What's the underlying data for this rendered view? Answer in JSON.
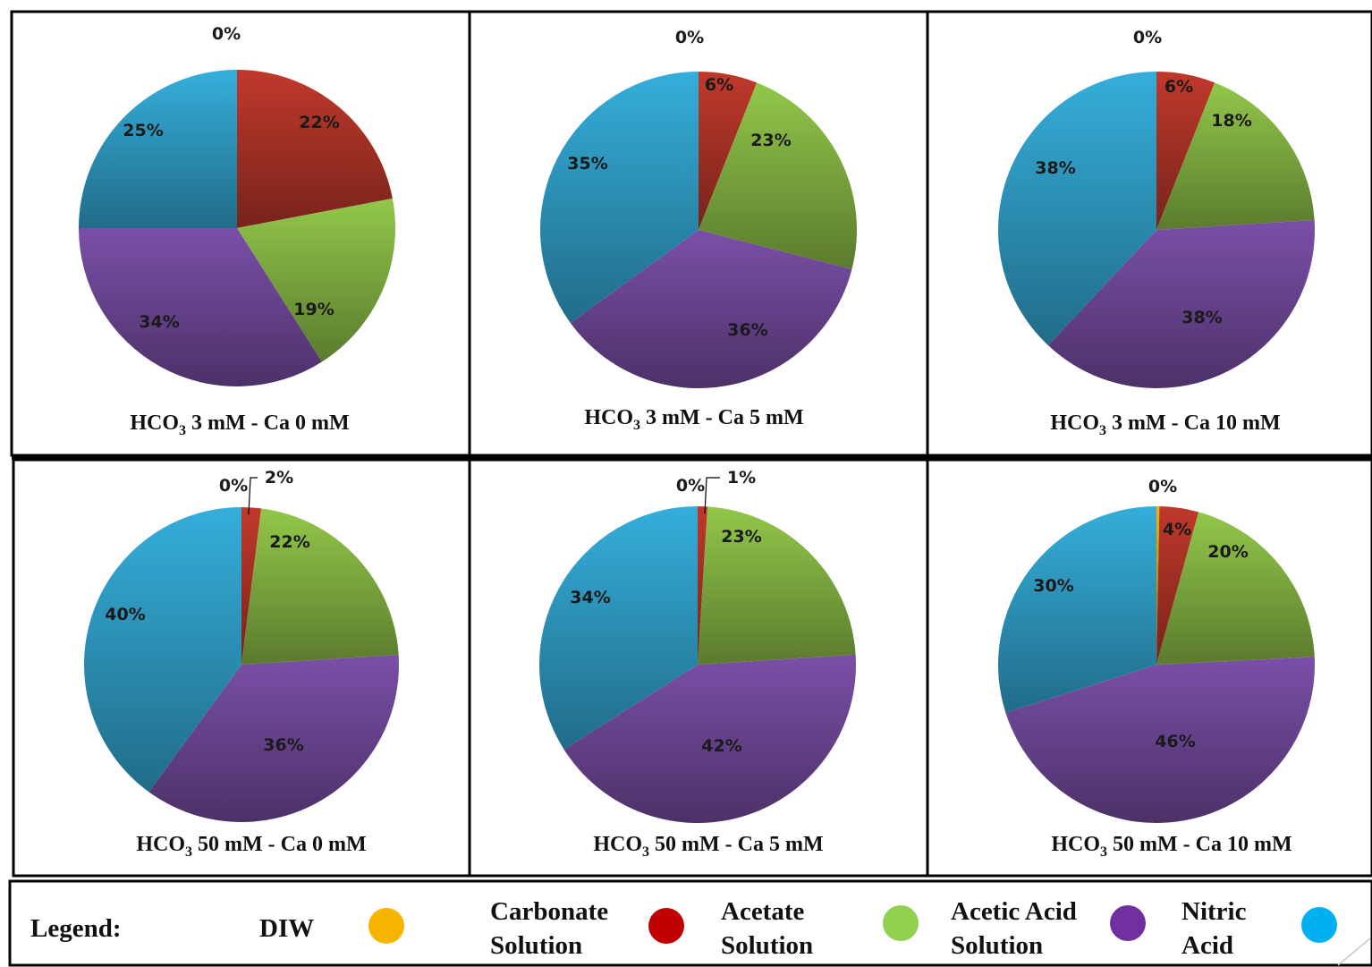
{
  "chart_data": [
    {
      "type": "pie",
      "title": {
        "pre": "HCO",
        "sub": "3",
        "post": " 3 mM - Ca 0 mM"
      },
      "slices": [
        {
          "label": "0%",
          "value": 0
        },
        {
          "label": "22%",
          "value": 22
        },
        {
          "label": "19%",
          "value": 19
        },
        {
          "label": "34%",
          "value": 34
        },
        {
          "label": "25%",
          "value": 25
        }
      ]
    },
    {
      "type": "pie",
      "title": {
        "pre": "HCO",
        "sub": "3",
        "post": " 3 mM - Ca 5 mM"
      },
      "slices": [
        {
          "label": "0%",
          "value": 0
        },
        {
          "label": "6%",
          "value": 6
        },
        {
          "label": "23%",
          "value": 23
        },
        {
          "label": "36%",
          "value": 36
        },
        {
          "label": "35%",
          "value": 35
        }
      ]
    },
    {
      "type": "pie",
      "title": {
        "pre": "HCO",
        "sub": "3",
        "post": " 3 mM - Ca 10 mM"
      },
      "slices": [
        {
          "label": "0%",
          "value": 0
        },
        {
          "label": "6%",
          "value": 6
        },
        {
          "label": "18%",
          "value": 18
        },
        {
          "label": "38%",
          "value": 38
        },
        {
          "label": "38%",
          "value": 38
        }
      ]
    },
    {
      "type": "pie",
      "title": {
        "pre": "HCO",
        "sub": "3",
        "post": " 50 mM - Ca 0 mM"
      },
      "slices": [
        {
          "label": "0%",
          "value": 0
        },
        {
          "label": "2%",
          "value": 2
        },
        {
          "label": "22%",
          "value": 22
        },
        {
          "label": "36%",
          "value": 36
        },
        {
          "label": "40%",
          "value": 40
        }
      ]
    },
    {
      "type": "pie",
      "title": {
        "pre": "HCO",
        "sub": "3",
        "post": " 50 mM - Ca 5 mM"
      },
      "slices": [
        {
          "label": "0%",
          "value": 0
        },
        {
          "label": "1%",
          "value": 1
        },
        {
          "label": "23%",
          "value": 23
        },
        {
          "label": "42%",
          "value": 42
        },
        {
          "label": "34%",
          "value": 34
        }
      ]
    },
    {
      "type": "pie",
      "title": {
        "pre": "HCO",
        "sub": "3",
        "post": " 50 mM - Ca 10 mM"
      },
      "slices": [
        {
          "label": "0%",
          "value": 0.3
        },
        {
          "label": "4%",
          "value": 4
        },
        {
          "label": "20%",
          "value": 20
        },
        {
          "label": "46%",
          "value": 46
        },
        {
          "label": "30%",
          "value": 30
        }
      ]
    }
  ],
  "series_colors": {
    "DIW": "#f5b400",
    "Carbonate Solution": "#c0392b",
    "Acetate Solution": "#92c74a",
    "Acetic Acid Solution": "#7b4fa8",
    "Nitric Acid": "#35aedb"
  },
  "legend": {
    "title": "Legend:",
    "items": [
      {
        "lines": [
          "DIW"
        ],
        "color": "#f5b400"
      },
      {
        "lines": [
          "Carbonate",
          "Solution"
        ],
        "color": "#c00000"
      },
      {
        "lines": [
          "Acetate",
          "Solution"
        ],
        "color": "#92d050"
      },
      {
        "lines": [
          "Acetic Acid",
          "Solution"
        ],
        "color": "#7030a0"
      },
      {
        "lines": [
          "Nitric",
          "Acid"
        ],
        "color": "#00b0f0"
      }
    ]
  }
}
